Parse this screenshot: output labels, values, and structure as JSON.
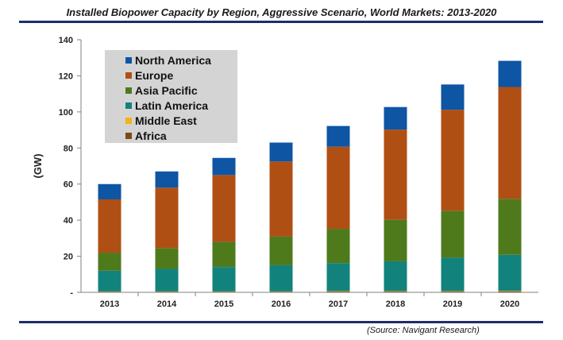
{
  "title": "Installed Biopower Capacity by Region, Aggressive Scenario, World Markets: 2013-2020",
  "source": "(Source: Navigant Research)",
  "chart_data": {
    "type": "bar",
    "stacked": true,
    "title": "Installed Biopower Capacity by Region, Aggressive Scenario, World Markets: 2013-2020",
    "xlabel": "",
    "ylabel": "(GW)",
    "ylim": [
      0,
      140
    ],
    "yticks": [
      0,
      20,
      40,
      60,
      80,
      100,
      120,
      140
    ],
    "ytick_labels": [
      "-",
      "20",
      "40",
      "60",
      "80",
      "100",
      "120",
      "140"
    ],
    "grid": false,
    "legend_position": "top-left",
    "categories": [
      "2013",
      "2014",
      "2015",
      "2016",
      "2017",
      "2018",
      "2019",
      "2020"
    ],
    "series": [
      {
        "name": "Africa",
        "color": "#7a4a1a",
        "values": [
          0.3,
          0.3,
          0.3,
          0.3,
          0.4,
          0.4,
          0.4,
          0.5
        ]
      },
      {
        "name": "Middle East",
        "color": "#f2b318",
        "values": [
          0.2,
          0.2,
          0.2,
          0.2,
          0.3,
          0.3,
          0.3,
          0.3
        ]
      },
      {
        "name": "Latin America",
        "color": "#12827c",
        "values": [
          11.5,
          12.5,
          13.5,
          14.5,
          15.5,
          16.5,
          18.5,
          20.0
        ]
      },
      {
        "name": "Asia Pacific",
        "color": "#4e7a1c",
        "values": [
          10.0,
          11.5,
          14.0,
          16.0,
          19.0,
          23.0,
          26.0,
          31.0
        ]
      },
      {
        "name": "Europe",
        "color": "#b04f14",
        "values": [
          29.5,
          33.5,
          37.0,
          41.5,
          45.5,
          50.0,
          56.0,
          62.0
        ]
      },
      {
        "name": "North America",
        "color": "#0e55a3",
        "values": [
          8.5,
          9.0,
          9.5,
          10.5,
          11.5,
          12.5,
          14.0,
          14.5
        ]
      }
    ],
    "legend_order": [
      "North America",
      "Europe",
      "Asia Pacific",
      "Latin America",
      "Middle East",
      "Africa"
    ]
  }
}
